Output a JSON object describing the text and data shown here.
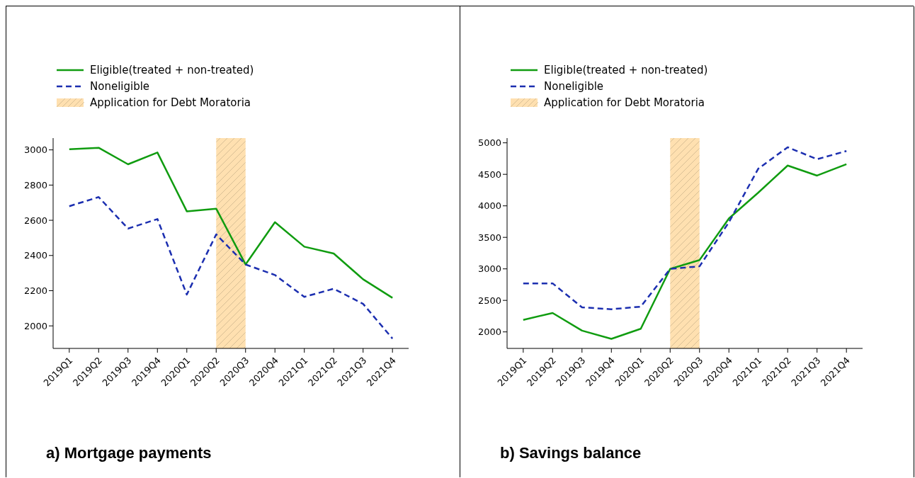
{
  "chart_data": [
    {
      "type": "line",
      "title": "a) Mortgage payments",
      "categories": [
        "2019Q1",
        "2019Q2",
        "2019Q3",
        "2019Q4",
        "2020Q1",
        "2020Q2",
        "2020Q3",
        "2020Q4",
        "2021Q1",
        "2021Q2",
        "2021Q3",
        "2021Q4"
      ],
      "series": [
        {
          "name": "Eligible(treated + non-treated)",
          "color": "#109c10",
          "line_style": "solid",
          "values": [
            3004,
            3012,
            2918,
            2985,
            2651,
            2666,
            2349,
            2589,
            2450,
            2411,
            2265,
            2159
          ]
        },
        {
          "name": "Noneligible",
          "color": "#1c2fb0",
          "line_style": "dashed",
          "values": [
            2680,
            2732,
            2553,
            2607,
            2178,
            2520,
            2349,
            2289,
            2165,
            2211,
            2125,
            1928
          ]
        }
      ],
      "bands": [
        {
          "axis": "x",
          "from": "2020Q2",
          "to": "2020Q3",
          "label": "Application for Debt Moratoria",
          "color": "#ffe0b0"
        }
      ],
      "ylim": [
        1872,
        3067
      ],
      "yticks": [
        2000,
        2200,
        2400,
        2600,
        2800,
        3000
      ],
      "grid": false,
      "legend": "top left"
    },
    {
      "type": "line",
      "title": "b) Savings balance",
      "categories": [
        "2019Q1",
        "2019Q2",
        "2019Q3",
        "2019Q4",
        "2020Q1",
        "2020Q2",
        "2020Q3",
        "2020Q4",
        "2021Q1",
        "2021Q2",
        "2021Q3",
        "2021Q4"
      ],
      "series": [
        {
          "name": "Eligible(treated + non-treated)",
          "color": "#109c10",
          "line_style": "solid",
          "values": [
            2190,
            2300,
            2020,
            1890,
            2050,
            3000,
            3140,
            3800,
            4210,
            4640,
            4480,
            4660
          ]
        },
        {
          "name": "Noneligible",
          "color": "#1c2fb0",
          "line_style": "dashed",
          "values": [
            2770,
            2770,
            2390,
            2360,
            2400,
            3000,
            3040,
            3740,
            4590,
            4930,
            4740,
            4870
          ]
        }
      ],
      "bands": [
        {
          "axis": "x",
          "from": "2020Q2",
          "to": "2020Q3",
          "label": "Application for Debt Moratoria",
          "color": "#ffe0b0"
        }
      ],
      "ylim": [
        1738,
        5075
      ],
      "yticks": [
        2000,
        2500,
        3000,
        3500,
        4000,
        4500,
        5000
      ],
      "grid": false,
      "legend": "top left"
    }
  ]
}
